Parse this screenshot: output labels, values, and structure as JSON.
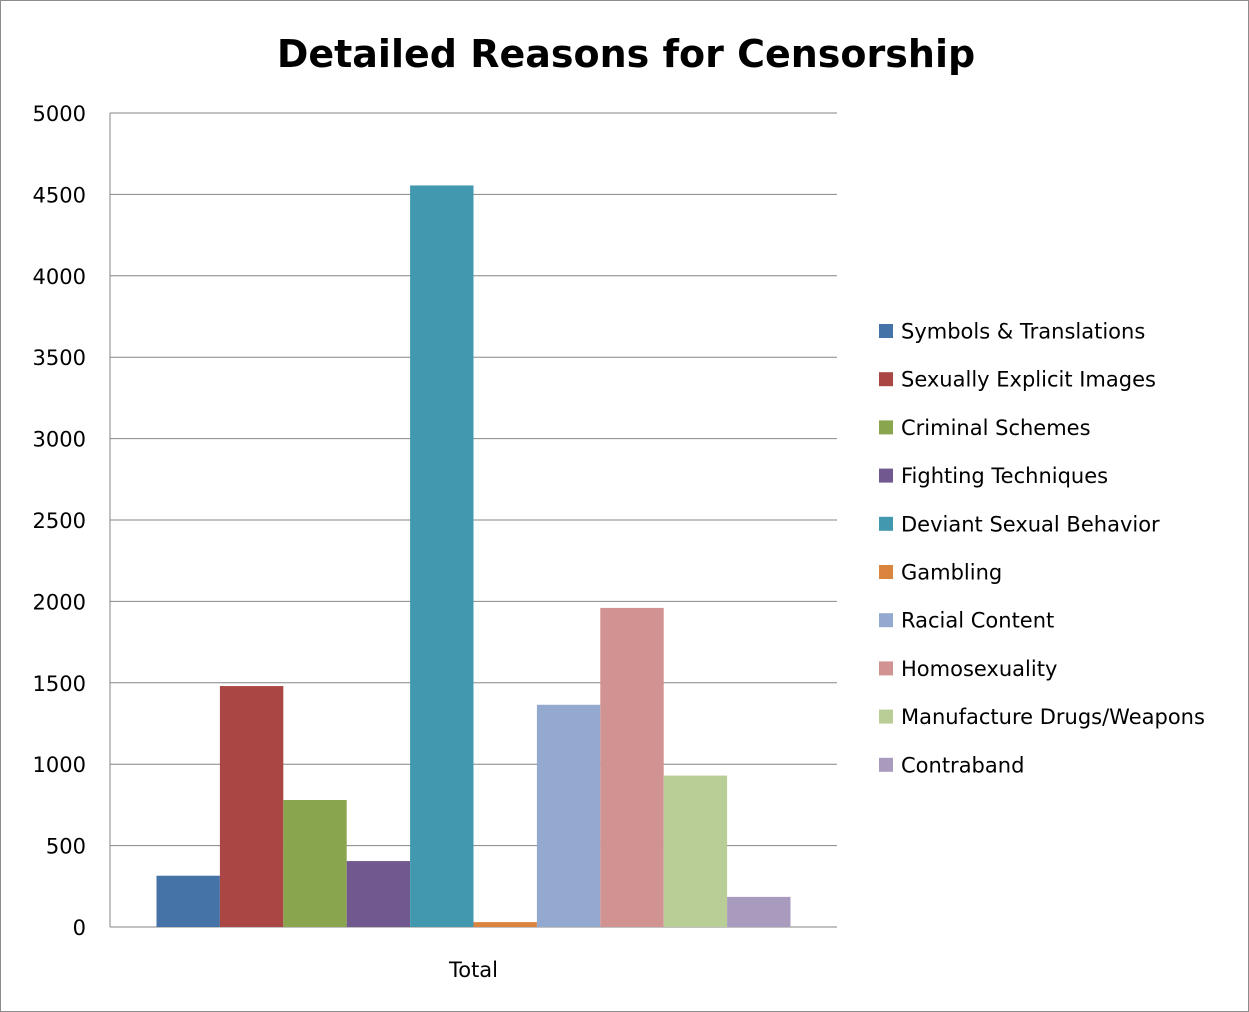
{
  "chart_data": {
    "type": "bar",
    "title": "Detailed Reasons for Censorship",
    "xlabel": "",
    "ylabel": "",
    "categories": [
      "Total"
    ],
    "ylim": [
      0,
      5000
    ],
    "yticks": [
      0,
      500,
      1000,
      1500,
      2000,
      2500,
      3000,
      3500,
      4000,
      4500,
      5000
    ],
    "grid": true,
    "legend_position": "right",
    "series": [
      {
        "name": "Symbols & Translations",
        "color": "#4572A7",
        "values": [
          315
        ]
      },
      {
        "name": "Sexually Explicit Images",
        "color": "#AA4643",
        "values": [
          1480
        ]
      },
      {
        "name": "Criminal Schemes",
        "color": "#89A54E",
        "values": [
          780
        ]
      },
      {
        "name": "Fighting Techniques",
        "color": "#71588F",
        "values": [
          405
        ]
      },
      {
        "name": "Deviant Sexual Behavior",
        "color": "#4198AF",
        "values": [
          4555
        ]
      },
      {
        "name": "Gambling",
        "color": "#DB843D",
        "values": [
          30
        ]
      },
      {
        "name": "Racial Content",
        "color": "#93A9CF",
        "values": [
          1365
        ]
      },
      {
        "name": "Homosexuality",
        "color": "#D19392",
        "values": [
          1960
        ]
      },
      {
        "name": "Manufacture Drugs/Weapons",
        "color": "#B9CD96",
        "values": [
          930
        ]
      },
      {
        "name": "Contraband",
        "color": "#A99BBD",
        "values": [
          185
        ]
      }
    ]
  }
}
